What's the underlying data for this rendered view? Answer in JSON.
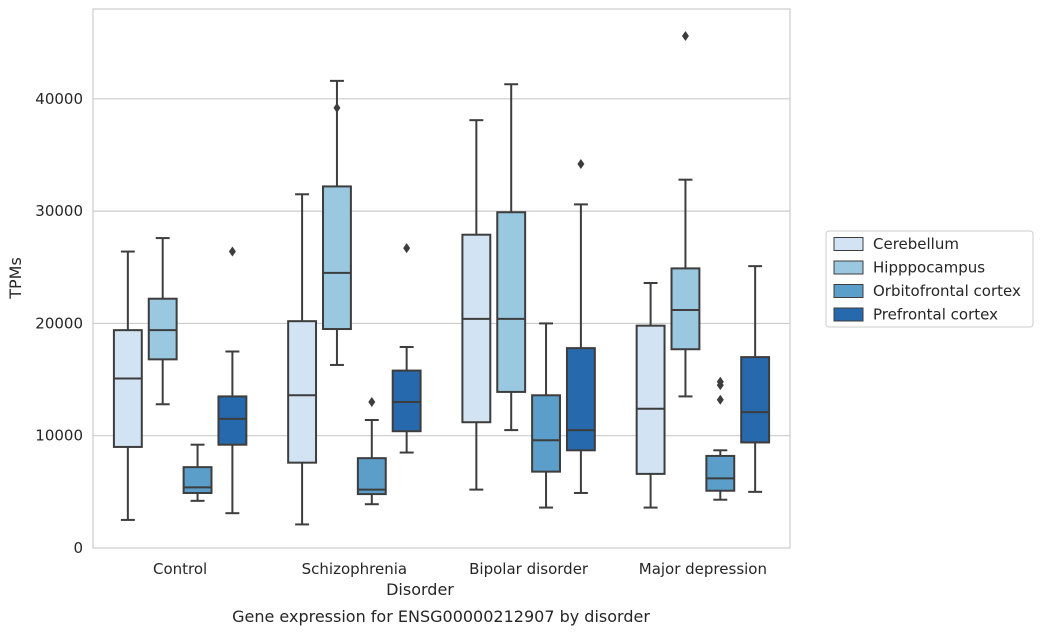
{
  "caption": "Gene expression for ENSG00000212907 by disorder",
  "chart_data": {
    "type": "box",
    "xlabel": "Disorder",
    "ylabel": "TPMs",
    "ylim": [
      0,
      48000
    ],
    "yticks": [
      0,
      10000,
      20000,
      30000,
      40000
    ],
    "grid": "horizontal",
    "legend_position": "right",
    "categories": [
      "Control",
      "Schizophrenia",
      "Bipolar disorder",
      "Major depression"
    ],
    "series": [
      {
        "name": "Cerebellum",
        "color": "#d2e3f3",
        "boxes": [
          {
            "whislo": 2500,
            "q1": 9000,
            "med": 15100,
            "q3": 19400,
            "whishi": 26400,
            "fliers": []
          },
          {
            "whislo": 2100,
            "q1": 7600,
            "med": 13600,
            "q3": 20200,
            "whishi": 31500,
            "fliers": []
          },
          {
            "whislo": 5200,
            "q1": 11200,
            "med": 20400,
            "q3": 27900,
            "whishi": 38100,
            "fliers": []
          },
          {
            "whislo": 3600,
            "q1": 6600,
            "med": 12400,
            "q3": 19800,
            "whishi": 23600,
            "fliers": []
          }
        ]
      },
      {
        "name": "Hipppocampus",
        "color": "#9ac8e0",
        "boxes": [
          {
            "whislo": 12800,
            "q1": 16800,
            "med": 19400,
            "q3": 22200,
            "whishi": 27600,
            "fliers": []
          },
          {
            "whislo": 16300,
            "q1": 19500,
            "med": 24500,
            "q3": 32200,
            "whishi": 41600,
            "fliers": [
              39200
            ]
          },
          {
            "whislo": 10500,
            "q1": 13900,
            "med": 20400,
            "q3": 29900,
            "whishi": 41300,
            "fliers": []
          },
          {
            "whislo": 13500,
            "q1": 17700,
            "med": 21200,
            "q3": 24900,
            "whishi": 32800,
            "fliers": [
              45600
            ]
          }
        ]
      },
      {
        "name": "Orbitofrontal cortex",
        "color": "#5a9ec9",
        "boxes": [
          {
            "whislo": 4200,
            "q1": 4900,
            "med": 5400,
            "q3": 7200,
            "whishi": 9200,
            "fliers": []
          },
          {
            "whislo": 3900,
            "q1": 4800,
            "med": 5200,
            "q3": 8000,
            "whishi": 11400,
            "fliers": [
              13000
            ]
          },
          {
            "whislo": 3600,
            "q1": 6800,
            "med": 9600,
            "q3": 13600,
            "whishi": 20000,
            "fliers": []
          },
          {
            "whislo": 4300,
            "q1": 5100,
            "med": 6200,
            "q3": 8200,
            "whishi": 8700,
            "fliers": [
              13200,
              14500,
              14800
            ]
          }
        ]
      },
      {
        "name": "Prefrontal cortex",
        "color": "#2669ad",
        "boxes": [
          {
            "whislo": 3100,
            "q1": 9200,
            "med": 11500,
            "q3": 13500,
            "whishi": 17500,
            "fliers": [
              26400
            ]
          },
          {
            "whislo": 8500,
            "q1": 10400,
            "med": 13000,
            "q3": 15800,
            "whishi": 17900,
            "fliers": [
              26700
            ]
          },
          {
            "whislo": 4900,
            "q1": 8700,
            "med": 10500,
            "q3": 17800,
            "whishi": 30600,
            "fliers": [
              34200
            ]
          },
          {
            "whislo": 5000,
            "q1": 9400,
            "med": 12100,
            "q3": 17000,
            "whishi": 25100,
            "fliers": []
          }
        ]
      }
    ]
  }
}
